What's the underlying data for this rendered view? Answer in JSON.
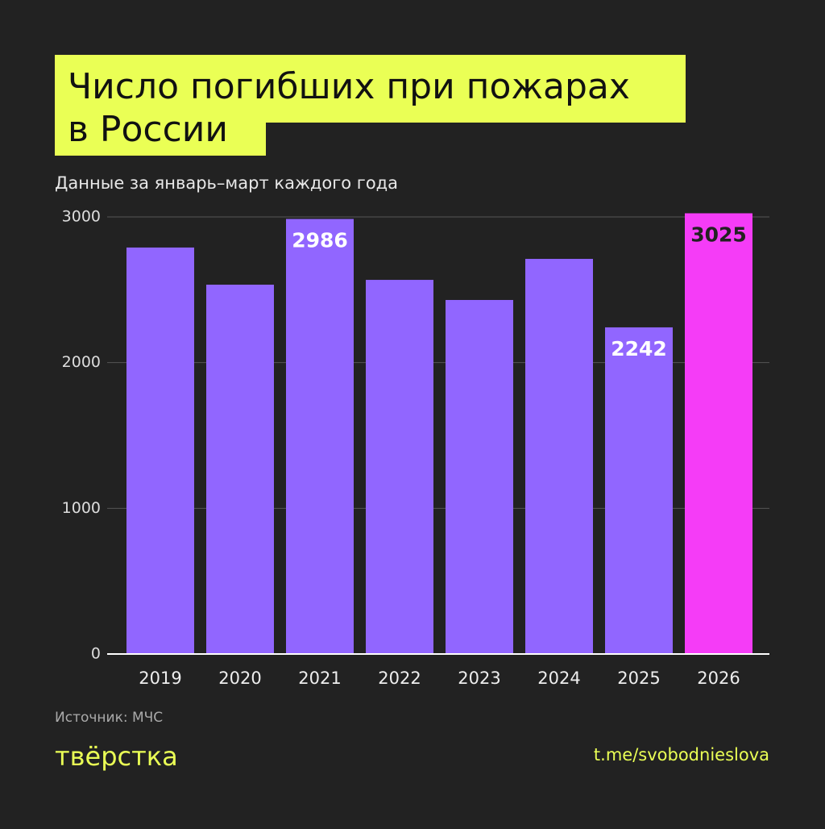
{
  "title": [
    "Число погибших при пожарах",
    "в России"
  ],
  "chart_data": {
    "type": "bar",
    "subtitle": "Данные за январь–март каждого года",
    "categories": [
      "2019",
      "2020",
      "2021",
      "2022",
      "2023",
      "2024",
      "2025",
      "2026"
    ],
    "values": [
      2790,
      2535,
      2986,
      2568,
      2430,
      2712,
      2242,
      3025
    ],
    "value_labels": [
      null,
      null,
      "2986",
      null,
      null,
      null,
      "2242",
      "3025"
    ],
    "colors": [
      "#9166ff",
      "#9166ff",
      "#9166ff",
      "#9166ff",
      "#9166ff",
      "#9166ff",
      "#9166ff",
      "#f53cf7"
    ],
    "ylim": [
      0,
      3000
    ],
    "yticks": [
      0,
      1000,
      2000,
      3000
    ],
    "grid": true
  },
  "source": "Источник: МЧС",
  "logo": "твёрстка",
  "link": "t.me/svobodnieslova"
}
